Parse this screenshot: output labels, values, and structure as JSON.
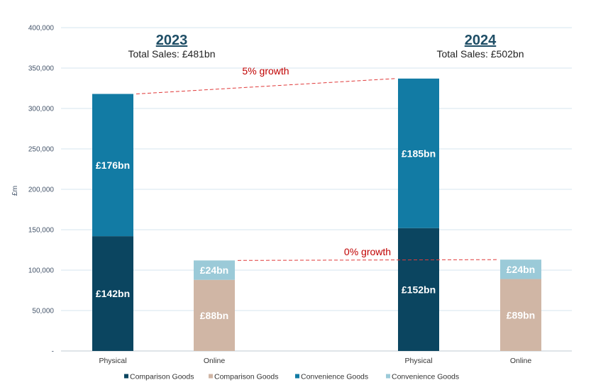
{
  "chart_data": {
    "type": "bar",
    "stacked": true,
    "ylabel": "£m",
    "ylim": [
      0,
      400000
    ],
    "yticks": [
      0,
      50000,
      100000,
      150000,
      200000,
      250000,
      300000,
      350000,
      400000
    ],
    "ytick_labels": [
      "-",
      "50,000",
      "100,000",
      "150,000",
      "200,000",
      "250,000",
      "300,000",
      "350,000",
      "400,000"
    ],
    "grid": true,
    "legend_position": "bottom",
    "groups": [
      {
        "year": "2023",
        "subtitle": "Total Sales: £481bn"
      },
      {
        "year": "2024",
        "subtitle": "Total Sales: £502bn"
      }
    ],
    "bars": [
      {
        "category": "Physical",
        "group": "2023",
        "segments": [
          {
            "series": 0,
            "value": 142000,
            "label": "£142bn"
          },
          {
            "series": 2,
            "value": 176000,
            "label": "£176bn"
          }
        ]
      },
      {
        "category": "Online",
        "group": "2023",
        "segments": [
          {
            "series": 1,
            "value": 88000,
            "label": "£88bn"
          },
          {
            "series": 3,
            "value": 24000,
            "label": "£24bn"
          }
        ]
      },
      {
        "category": "Physical",
        "group": "2024",
        "segments": [
          {
            "series": 0,
            "value": 152000,
            "label": "£152bn"
          },
          {
            "series": 2,
            "value": 185000,
            "label": "£185bn"
          }
        ]
      },
      {
        "category": "Online",
        "group": "2024",
        "segments": [
          {
            "series": 1,
            "value": 89000,
            "label": "£89bn"
          },
          {
            "series": 3,
            "value": 24000,
            "label": "£24bn"
          }
        ]
      }
    ],
    "series": [
      {
        "name": "Comparison Goods",
        "color": "#0b4560"
      },
      {
        "name": "Comparison Goods",
        "color": "#d0b6a5"
      },
      {
        "name": "Convenience Goods",
        "color": "#127ba4"
      },
      {
        "name": "Convenience Goods",
        "color": "#9bcad8"
      }
    ],
    "annotations": [
      {
        "text": "5% growth",
        "from_bar": 0,
        "to_bar": 2,
        "color": "#e03a3a"
      },
      {
        "text": "0% growth",
        "from_bar": 1,
        "to_bar": 3,
        "color": "#e03a3a"
      }
    ]
  }
}
